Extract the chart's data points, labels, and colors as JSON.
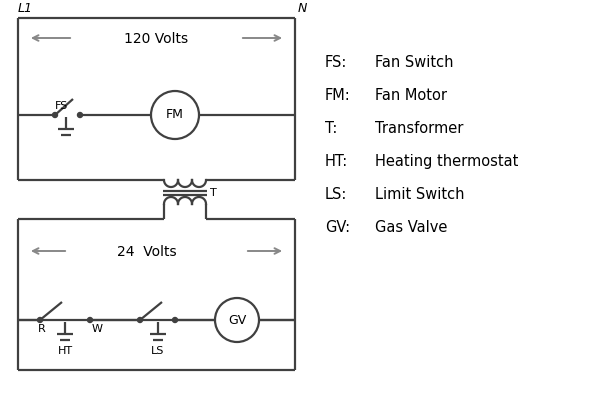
{
  "bg_color": "#ffffff",
  "line_color": "#404040",
  "arrow_color": "#888888",
  "text_color": "#000000",
  "lw": 1.6,
  "legend_items": [
    [
      "FS:",
      "Fan Switch"
    ],
    [
      "FM:",
      "Fan Motor"
    ],
    [
      "T:",
      "Transformer"
    ],
    [
      "HT:",
      "Heating thermostat"
    ],
    [
      "LS:",
      "Limit Switch"
    ],
    [
      "GV:",
      "Gas Valve"
    ]
  ],
  "L1_label": "L1",
  "N_label": "N",
  "volts120_label": "120 Volts",
  "volts24_label": "24  Volts",
  "T_label": "T",
  "R_label": "R",
  "W_label": "W",
  "HT_label": "HT",
  "LS_label": "LS",
  "FS_label": "FS",
  "FM_label": "FM",
  "GV_label": "GV"
}
